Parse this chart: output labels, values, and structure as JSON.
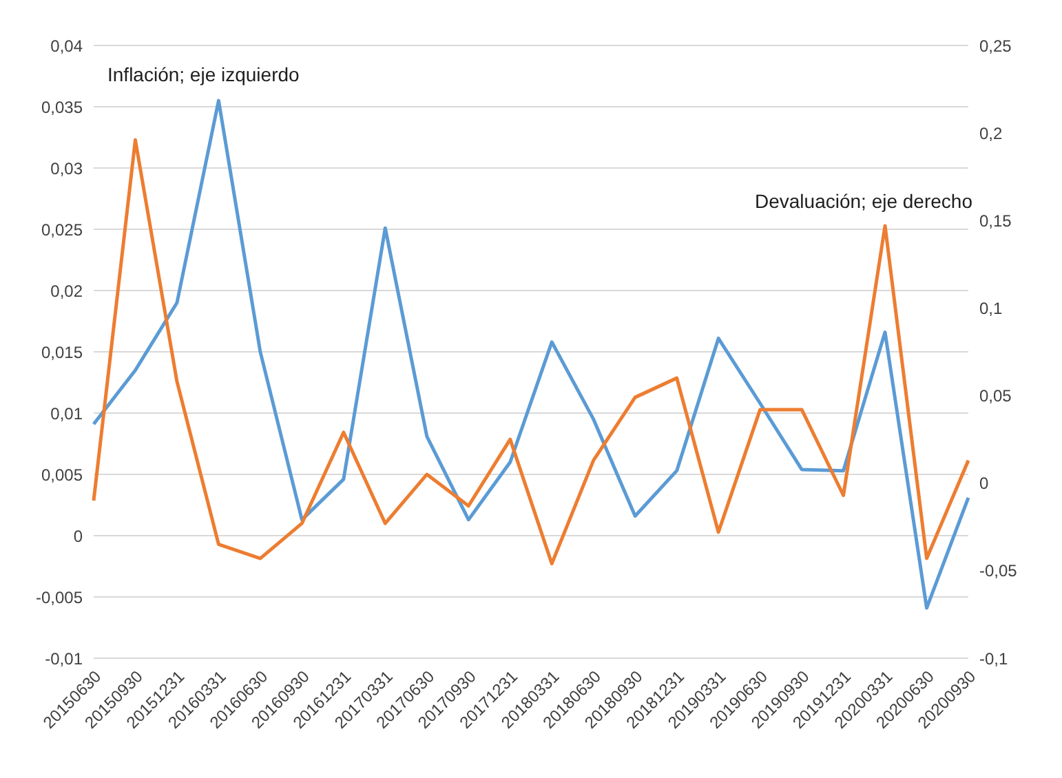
{
  "chart_data": {
    "type": "line",
    "categories": [
      "20150630",
      "20150930",
      "20151231",
      "20160331",
      "20160630",
      "20160930",
      "20161231",
      "20170331",
      "20170630",
      "20170930",
      "20171231",
      "20180331",
      "20180630",
      "20180930",
      "20181231",
      "20190331",
      "20190630",
      "20190930",
      "20191231",
      "20200331",
      "20200630",
      "20200930"
    ],
    "series": [
      {
        "name": "Inflación; eje izquierdo",
        "color": "#5b9bd5",
        "values": [
          0.0091,
          0.0135,
          0.019,
          0.0355,
          0.015,
          0.0013,
          0.0046,
          0.0251,
          0.0081,
          0.0013,
          0.006,
          0.0158,
          0.0095,
          0.0016,
          0.0053,
          0.0161,
          0.0108,
          0.0054,
          0.0053,
          0.0166,
          -0.0059,
          0.0031
        ]
      },
      {
        "name": "Devaluación; eje derecho",
        "color": "#ed7d31",
        "axis": "y2",
        "values": [
          -0.01,
          0.196,
          0.058,
          -0.035,
          -0.043,
          -0.023,
          0.029,
          -0.023,
          0.005,
          -0.013,
          0.025,
          -0.046,
          0.013,
          0.049,
          0.06,
          -0.028,
          0.042,
          0.042,
          -0.007,
          0.147,
          -0.043,
          0.013
        ]
      }
    ],
    "ylim": [
      -0.01,
      0.04
    ],
    "yticks": [
      {
        "value": -0.01,
        "label": "-0,01"
      },
      {
        "value": -0.005,
        "label": "-0,005"
      },
      {
        "value": 0,
        "label": "0"
      },
      {
        "value": 0.005,
        "label": "0,005"
      },
      {
        "value": 0.01,
        "label": "0,01"
      },
      {
        "value": 0.015,
        "label": "0,015"
      },
      {
        "value": 0.02,
        "label": "0,02"
      },
      {
        "value": 0.025,
        "label": "0,025"
      },
      {
        "value": 0.03,
        "label": "0,03"
      },
      {
        "value": 0.035,
        "label": "0,035"
      },
      {
        "value": 0.04,
        "label": "0,04"
      }
    ],
    "y2lim": [
      -0.1,
      0.25
    ],
    "y2ticks": [
      {
        "value": -0.1,
        "label": "-0,1"
      },
      {
        "value": -0.05,
        "label": "-0,05"
      },
      {
        "value": 0,
        "label": "0"
      },
      {
        "value": 0.05,
        "label": "0,05"
      },
      {
        "value": 0.1,
        "label": "0,1"
      },
      {
        "value": 0.15,
        "label": "0,15"
      },
      {
        "value": 0.2,
        "label": "0,2"
      },
      {
        "value": 0.25,
        "label": "0,25"
      }
    ],
    "grid": "y",
    "marker": "none",
    "line_style": "solid"
  }
}
